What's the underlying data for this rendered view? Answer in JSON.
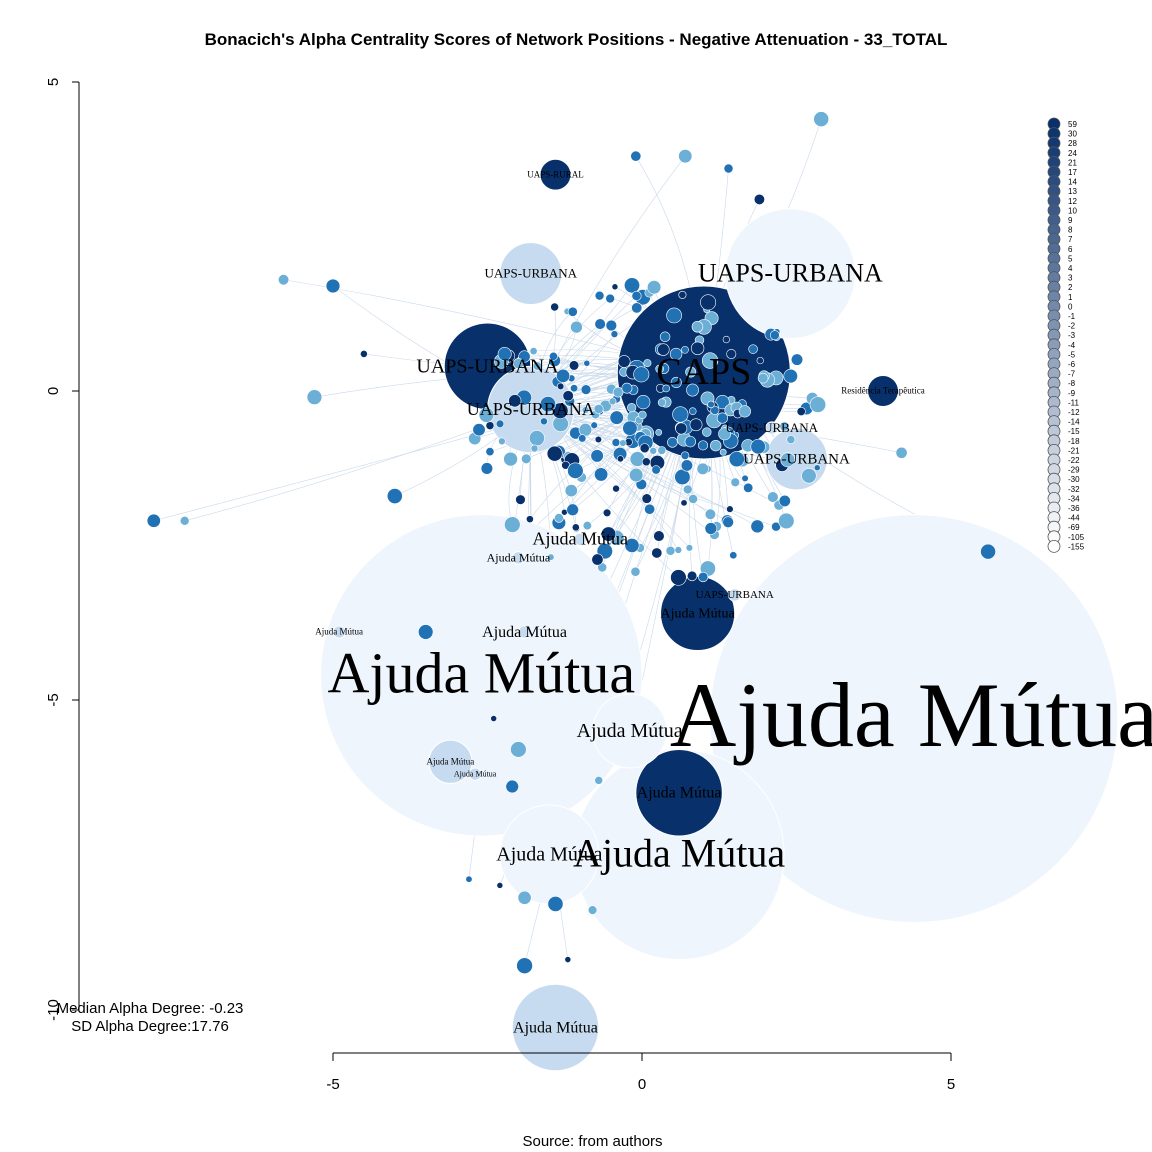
{
  "title": "Bonacich's Alpha Centrality Scores of Network Positions - Negative Attenuation - 33_TOTAL",
  "source": "Source: from authors",
  "stats": {
    "median": "Median Alpha Degree: -0.23",
    "sd": "SD Alpha Degree:17.76"
  },
  "axes": {
    "x_ticks": [
      "-5",
      "0",
      "5"
    ],
    "y_ticks": [
      "5",
      "0",
      "-5",
      "-10"
    ]
  },
  "colors": {
    "dark": "#08306b",
    "mid": "#2171b5",
    "light": "#6baed6",
    "pale": "#c6dbef",
    "palest": "#eef5fc",
    "edge": "#c9d9ea"
  },
  "legend": [
    "59",
    "30",
    "28",
    "24",
    "21",
    "17",
    "14",
    "13",
    "12",
    "10",
    "9",
    "8",
    "7",
    "6",
    "5",
    "4",
    "3",
    "2",
    "1",
    "0",
    "-1",
    "-2",
    "-3",
    "-4",
    "-5",
    "-6",
    "-7",
    "-8",
    "-9",
    "-11",
    "-12",
    "-14",
    "-15",
    "-18",
    "-21",
    "-22",
    "-29",
    "-30",
    "-32",
    "-34",
    "-36",
    "-44",
    "-69",
    "-105",
    "-155"
  ],
  "chart_data": {
    "type": "network",
    "xlim": [
      -5,
      5
    ],
    "ylim": [
      -10,
      5
    ],
    "nodes": [
      {
        "label": "Ajuda Mútua",
        "x": 4.4,
        "y": -5.3,
        "r": 3.3,
        "shade": "palest",
        "size": 92
      },
      {
        "label": "Ajuda Mútua",
        "x": -2.6,
        "y": -4.6,
        "r": 2.6,
        "shade": "palest",
        "size": 58
      },
      {
        "label": "Ajuda Mútua",
        "x": 0.6,
        "y": -7.5,
        "r": 1.7,
        "shade": "palest",
        "size": 40
      },
      {
        "label": "Ajuda Mútua",
        "x": -0.2,
        "y": -5.5,
        "r": 0.6,
        "shade": "palest",
        "size": 20
      },
      {
        "label": "Ajuda Mútua",
        "x": -1.5,
        "y": -7.5,
        "r": 0.8,
        "shade": "palest",
        "size": 20
      },
      {
        "label": "Ajuda Mútua",
        "x": -1.9,
        "y": -3.9,
        "r": 0.1,
        "shade": "pale",
        "size": 16
      },
      {
        "label": "Ajuda Mútua",
        "x": -1.0,
        "y": -2.4,
        "r": 0.1,
        "shade": "pale",
        "size": 18
      },
      {
        "label": "Ajuda Mútua",
        "x": -2.0,
        "y": -2.7,
        "r": 0.1,
        "shade": "pale",
        "size": 12
      },
      {
        "label": "Ajuda Mútua",
        "x": -4.9,
        "y": -3.9,
        "r": 0.1,
        "shade": "pale",
        "size": 9
      },
      {
        "label": "Ajuda Mútua",
        "x": -3.1,
        "y": -6.0,
        "r": 0.35,
        "shade": "pale",
        "size": 9
      },
      {
        "label": "Ajuda Mútua",
        "x": -2.7,
        "y": -6.2,
        "r": 0.1,
        "shade": "pale",
        "size": 8
      },
      {
        "label": "Ajuda Mútua",
        "x": -1.4,
        "y": -10.3,
        "r": 0.7,
        "shade": "pale",
        "size": 16
      },
      {
        "label": "Ajuda Mútua",
        "x": 0.6,
        "y": -6.5,
        "r": 0.7,
        "shade": "dark",
        "size": 16
      },
      {
        "label": "Ajuda Mútua",
        "x": 0.9,
        "y": -3.6,
        "r": 0.6,
        "shade": "dark",
        "size": 14
      },
      {
        "label": "CAPS",
        "x": 1.0,
        "y": 0.3,
        "r": 1.4,
        "shade": "dark",
        "size": 38
      },
      {
        "label": "UAPS-URBANA",
        "x": 2.4,
        "y": 1.9,
        "r": 1.05,
        "shade": "palest",
        "size": 26
      },
      {
        "label": "UAPS-URBANA",
        "x": -2.5,
        "y": 0.4,
        "r": 0.7,
        "shade": "dark",
        "size": 20
      },
      {
        "label": "UAPS-URBANA",
        "x": -1.8,
        "y": -0.3,
        "r": 0.7,
        "shade": "pale",
        "size": 18
      },
      {
        "label": "UAPS-URBANA",
        "x": -1.8,
        "y": 1.9,
        "r": 0.5,
        "shade": "pale",
        "size": 13
      },
      {
        "label": "UAPS-URBANA",
        "x": 2.5,
        "y": -1.1,
        "r": 0.5,
        "shade": "pale",
        "size": 15
      },
      {
        "label": "UAPS-URBANA",
        "x": 2.1,
        "y": -0.6,
        "r": 0.1,
        "shade": "pale",
        "size": 13
      },
      {
        "label": "UAPS-URBANA",
        "x": 1.5,
        "y": -3.3,
        "r": 0.1,
        "shade": "pale",
        "size": 11
      },
      {
        "label": "UAPS-RURAL",
        "x": -1.4,
        "y": 3.5,
        "r": 0.25,
        "shade": "dark",
        "size": 9
      },
      {
        "label": "Residência Terapêutica",
        "x": 3.9,
        "y": 0.0,
        "r": 0.25,
        "shade": "dark",
        "size": 9
      }
    ]
  }
}
